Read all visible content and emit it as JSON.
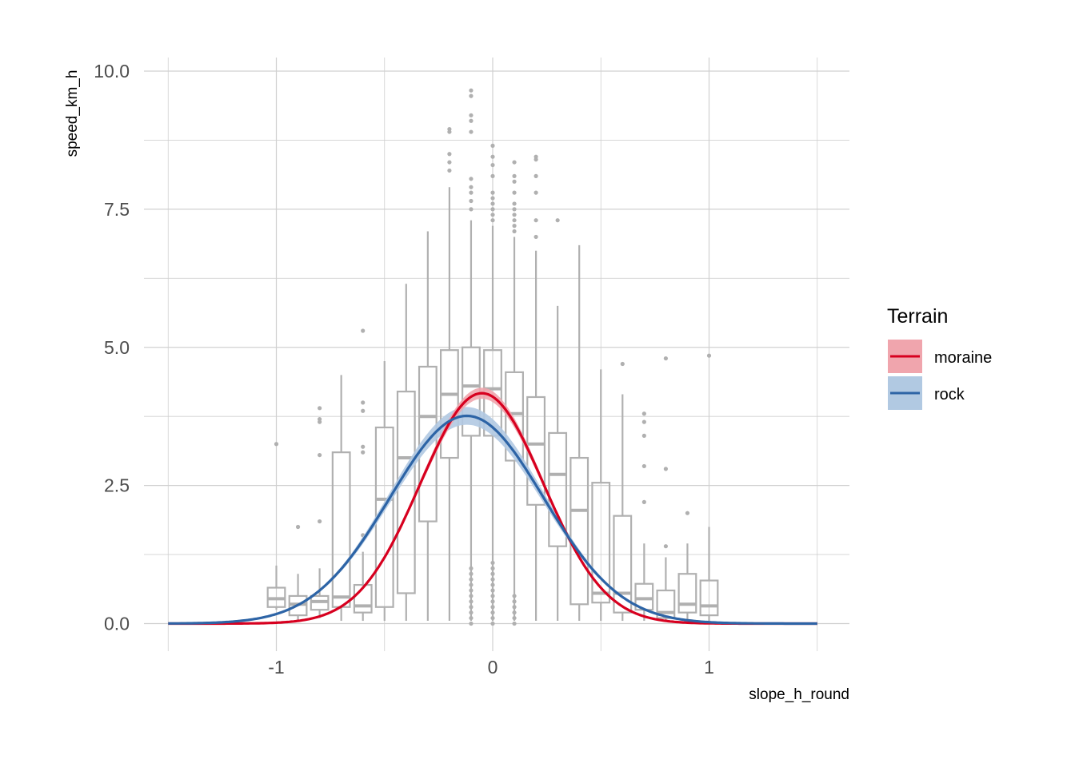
{
  "chart_data": {
    "type": "boxplot_with_fitted_curves",
    "xlabel": "slope_h_round",
    "ylabel": "speed_km_h",
    "xlim": [
      -1.5,
      1.5
    ],
    "ylim": [
      0,
      10
    ],
    "x_ticks": [
      {
        "value": -1,
        "label": "-1"
      },
      {
        "value": 0,
        "label": "0"
      },
      {
        "value": 1,
        "label": "1"
      }
    ],
    "y_ticks": [
      {
        "value": 0,
        "label": "0.0"
      },
      {
        "value": 2.5,
        "label": "2.5"
      },
      {
        "value": 5,
        "label": "5.0"
      },
      {
        "value": 7.5,
        "label": "7.5"
      },
      {
        "value": 10,
        "label": "10.0"
      }
    ],
    "grid": true,
    "boxes": [
      {
        "x": -1.0,
        "q1": 0.3,
        "median": 0.45,
        "q3": 0.65,
        "lo": 0.25,
        "hi": 1.05,
        "outliers": [
          3.25
        ]
      },
      {
        "x": -0.9,
        "q1": 0.15,
        "median": 0.35,
        "q3": 0.5,
        "lo": 0.05,
        "hi": 0.9,
        "outliers": [
          1.75
        ]
      },
      {
        "x": -0.8,
        "q1": 0.25,
        "median": 0.4,
        "q3": 0.5,
        "lo": 0.1,
        "hi": 1.0,
        "outliers": [
          1.85,
          3.05,
          3.65,
          3.7,
          3.9
        ]
      },
      {
        "x": -0.7,
        "q1": 0.3,
        "median": 0.48,
        "q3": 3.1,
        "lo": 0.05,
        "hi": 4.5,
        "outliers": []
      },
      {
        "x": -0.6,
        "q1": 0.2,
        "median": 0.32,
        "q3": 0.7,
        "lo": 0.05,
        "hi": 1.3,
        "outliers": [
          1.6,
          3.1,
          3.2,
          3.85,
          4.0,
          5.3
        ]
      },
      {
        "x": -0.5,
        "q1": 0.3,
        "median": 2.25,
        "q3": 3.55,
        "lo": 0.05,
        "hi": 4.75,
        "outliers": []
      },
      {
        "x": -0.4,
        "q1": 0.55,
        "median": 3.0,
        "q3": 4.2,
        "lo": 0.05,
        "hi": 6.15,
        "outliers": []
      },
      {
        "x": -0.3,
        "q1": 1.85,
        "median": 3.75,
        "q3": 4.65,
        "lo": 0.05,
        "hi": 7.1,
        "outliers": []
      },
      {
        "x": -0.2,
        "q1": 3.0,
        "median": 4.15,
        "q3": 4.95,
        "lo": 0.05,
        "hi": 7.9,
        "outliers": [
          8.2,
          8.35,
          8.5,
          8.9,
          8.95
        ]
      },
      {
        "x": -0.1,
        "q1": 3.4,
        "median": 4.3,
        "q3": 5.0,
        "lo": 0.05,
        "hi": 7.3,
        "outliers": [
          0.0,
          0.1,
          0.2,
          0.3,
          0.4,
          0.5,
          0.6,
          0.7,
          0.8,
          0.9,
          1.0,
          7.5,
          7.65,
          7.8,
          7.9,
          8.05,
          8.9,
          9.1,
          9.2,
          9.55,
          9.65
        ]
      },
      {
        "x": 0.0,
        "q1": 3.4,
        "median": 4.25,
        "q3": 4.95,
        "lo": 0.05,
        "hi": 7.2,
        "outliers": [
          0.0,
          0.1,
          0.2,
          0.3,
          0.4,
          0.5,
          0.6,
          0.7,
          0.8,
          0.9,
          1.0,
          1.1,
          7.3,
          7.4,
          7.5,
          7.6,
          7.7,
          7.8,
          8.1,
          8.3,
          8.45,
          8.65
        ]
      },
      {
        "x": 0.1,
        "q1": 2.95,
        "median": 3.8,
        "q3": 4.55,
        "lo": 0.05,
        "hi": 7.0,
        "outliers": [
          0.0,
          0.1,
          0.2,
          0.3,
          0.4,
          0.5,
          7.1,
          7.2,
          7.3,
          7.4,
          7.5,
          7.6,
          7.8,
          8.0,
          8.1,
          8.35
        ]
      },
      {
        "x": 0.2,
        "q1": 2.15,
        "median": 3.25,
        "q3": 4.1,
        "lo": 0.05,
        "hi": 6.75,
        "outliers": [
          7.0,
          7.3,
          7.8,
          8.1,
          8.4,
          8.45
        ]
      },
      {
        "x": 0.3,
        "q1": 1.4,
        "median": 2.7,
        "q3": 3.45,
        "lo": 0.05,
        "hi": 5.75,
        "outliers": [
          7.3
        ]
      },
      {
        "x": 0.4,
        "q1": 0.35,
        "median": 2.05,
        "q3": 3.0,
        "lo": 0.05,
        "hi": 6.85,
        "outliers": []
      },
      {
        "x": 0.5,
        "q1": 0.38,
        "median": 0.55,
        "q3": 2.55,
        "lo": 0.05,
        "hi": 4.6,
        "outliers": []
      },
      {
        "x": 0.6,
        "q1": 0.2,
        "median": 0.55,
        "q3": 1.95,
        "lo": 0.05,
        "hi": 4.15,
        "outliers": [
          4.7
        ]
      },
      {
        "x": 0.7,
        "q1": 0.25,
        "median": 0.45,
        "q3": 0.72,
        "lo": 0.05,
        "hi": 1.45,
        "outliers": [
          2.2,
          2.85,
          3.4,
          3.65,
          3.8
        ]
      },
      {
        "x": 0.8,
        "q1": 0.1,
        "median": 0.2,
        "q3": 0.6,
        "lo": 0.05,
        "hi": 1.2,
        "outliers": [
          1.4,
          2.8,
          4.8
        ]
      },
      {
        "x": 0.9,
        "q1": 0.2,
        "median": 0.35,
        "q3": 0.9,
        "lo": 0.05,
        "hi": 1.45,
        "outliers": [
          2.0
        ]
      },
      {
        "x": 1.0,
        "q1": 0.15,
        "median": 0.32,
        "q3": 0.78,
        "lo": 0.05,
        "hi": 1.75,
        "outliers": [
          4.85
        ]
      }
    ],
    "series": [
      {
        "name": "moraine",
        "model": "gaussian",
        "amplitude": 4.17,
        "mean": -0.05,
        "sd": 0.285,
        "band": 0.1,
        "color": "#d7001f",
        "fill": "#f0a5ad"
      },
      {
        "name": "rock",
        "model": "gaussian",
        "amplitude": 3.76,
        "mean": -0.12,
        "sd": 0.355,
        "band": 0.16,
        "color": "#2d64a6",
        "fill": "#b1c9e2"
      }
    ],
    "legend": {
      "title": "Terrain",
      "position": "right"
    }
  },
  "colors": {
    "grid": "#d0d0d0",
    "box": "#b0b0b0",
    "moraine": "#d7001f",
    "rock": "#2d64a6"
  }
}
